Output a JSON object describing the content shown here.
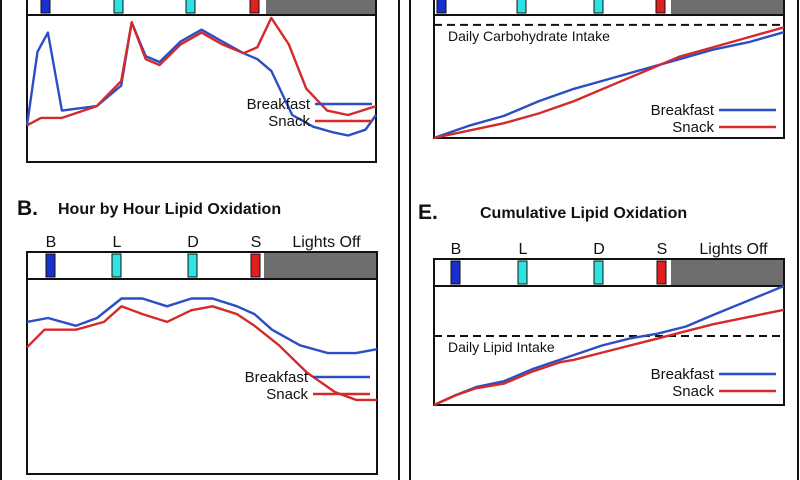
{
  "colors": {
    "breakfast": "#2b4ec4",
    "snack": "#d42a2a",
    "breakfast_light": "#a9b8e6",
    "snack_light": "#f0a8a8",
    "marker_b": "#1a2fd0",
    "marker_cyan": "#2fe3e3",
    "marker_s": "#e02020",
    "lights_off": "#6e6e6e"
  },
  "chart_data": [
    {
      "panel": "top-left",
      "type": "line",
      "title": "",
      "meal_markers": [],
      "lights_off_label": "",
      "series": [
        {
          "name": "Breakfast",
          "color": "breakfast",
          "points": [
            [
              0,
              0.25
            ],
            [
              0.03,
              0.75
            ],
            [
              0.06,
              0.88
            ],
            [
              0.1,
              0.35
            ],
            [
              0.2,
              0.38
            ],
            [
              0.27,
              0.52
            ],
            [
              0.3,
              0.95
            ],
            [
              0.34,
              0.72
            ],
            [
              0.38,
              0.68
            ],
            [
              0.44,
              0.82
            ],
            [
              0.5,
              0.9
            ],
            [
              0.56,
              0.82
            ],
            [
              0.62,
              0.74
            ],
            [
              0.66,
              0.7
            ],
            [
              0.7,
              0.62
            ],
            [
              0.76,
              0.32
            ],
            [
              0.82,
              0.24
            ],
            [
              0.88,
              0.2
            ],
            [
              0.92,
              0.18
            ],
            [
              0.97,
              0.22
            ],
            [
              1,
              0.32
            ]
          ]
        },
        {
          "name": "Snack",
          "color": "snack",
          "points": [
            [
              0,
              0.25
            ],
            [
              0.04,
              0.3
            ],
            [
              0.1,
              0.3
            ],
            [
              0.2,
              0.38
            ],
            [
              0.27,
              0.55
            ],
            [
              0.3,
              0.95
            ],
            [
              0.34,
              0.7
            ],
            [
              0.38,
              0.66
            ],
            [
              0.44,
              0.8
            ],
            [
              0.5,
              0.88
            ],
            [
              0.56,
              0.8
            ],
            [
              0.62,
              0.74
            ],
            [
              0.66,
              0.78
            ],
            [
              0.7,
              0.98
            ],
            [
              0.75,
              0.8
            ],
            [
              0.8,
              0.5
            ],
            [
              0.86,
              0.35
            ],
            [
              0.92,
              0.32
            ],
            [
              1,
              0.38
            ]
          ]
        }
      ],
      "legend": [
        "Breakfast",
        "Snack"
      ]
    },
    {
      "panel": "top-right",
      "type": "line",
      "title": "",
      "meal_markers": [],
      "lights_off_label": "",
      "reference_line_label": "Daily Carbohydrate Intake",
      "reference_value": 0.92,
      "series": [
        {
          "name": "Breakfast",
          "color": "breakfast",
          "points": [
            [
              0,
              0
            ],
            [
              0.1,
              0.1
            ],
            [
              0.2,
              0.18
            ],
            [
              0.3,
              0.3
            ],
            [
              0.4,
              0.4
            ],
            [
              0.5,
              0.48
            ],
            [
              0.6,
              0.56
            ],
            [
              0.7,
              0.64
            ],
            [
              0.8,
              0.72
            ],
            [
              0.9,
              0.78
            ],
            [
              1,
              0.86
            ]
          ]
        },
        {
          "name": "Snack",
          "color": "snack",
          "points": [
            [
              0,
              0
            ],
            [
              0.1,
              0.06
            ],
            [
              0.2,
              0.12
            ],
            [
              0.3,
              0.2
            ],
            [
              0.4,
              0.3
            ],
            [
              0.5,
              0.42
            ],
            [
              0.6,
              0.54
            ],
            [
              0.7,
              0.66
            ],
            [
              0.8,
              0.74
            ],
            [
              0.9,
              0.82
            ],
            [
              1,
              0.9
            ]
          ]
        }
      ],
      "legend": [
        "Breakfast",
        "Snack"
      ]
    },
    {
      "panel": "B",
      "type": "line",
      "title": "Hour by Hour Lipid Oxidation",
      "meal_markers": [
        "B",
        "L",
        "D",
        "S"
      ],
      "lights_off_label": "Lights Off",
      "series": [
        {
          "name": "Breakfast",
          "color": "breakfast",
          "points": [
            [
              0,
              0.78
            ],
            [
              0.06,
              0.8
            ],
            [
              0.14,
              0.76
            ],
            [
              0.2,
              0.8
            ],
            [
              0.27,
              0.9
            ],
            [
              0.33,
              0.9
            ],
            [
              0.4,
              0.86
            ],
            [
              0.47,
              0.9
            ],
            [
              0.53,
              0.9
            ],
            [
              0.6,
              0.86
            ],
            [
              0.65,
              0.82
            ],
            [
              0.7,
              0.74
            ],
            [
              0.78,
              0.66
            ],
            [
              0.86,
              0.62
            ],
            [
              0.94,
              0.62
            ],
            [
              1,
              0.64
            ]
          ]
        },
        {
          "name": "Snack",
          "color": "snack",
          "points": [
            [
              0,
              0.65
            ],
            [
              0.05,
              0.74
            ],
            [
              0.14,
              0.74
            ],
            [
              0.22,
              0.78
            ],
            [
              0.27,
              0.86
            ],
            [
              0.33,
              0.82
            ],
            [
              0.4,
              0.78
            ],
            [
              0.47,
              0.84
            ],
            [
              0.53,
              0.86
            ],
            [
              0.6,
              0.82
            ],
            [
              0.65,
              0.76
            ],
            [
              0.72,
              0.66
            ],
            [
              0.8,
              0.52
            ],
            [
              0.88,
              0.42
            ],
            [
              0.94,
              0.38
            ],
            [
              1,
              0.38
            ]
          ]
        }
      ],
      "legend": [
        "Breakfast",
        "Snack"
      ]
    },
    {
      "panel": "E",
      "type": "line",
      "title": "Cumulative Lipid Oxidation",
      "meal_markers": [
        "B",
        "L",
        "D",
        "S"
      ],
      "lights_off_label": "Lights Off",
      "reference_line_label": "Daily Lipid Intake",
      "reference_value": 0.58,
      "series": [
        {
          "name": "Breakfast",
          "color": "breakfast",
          "points": [
            [
              0,
              0
            ],
            [
              0.06,
              0.08
            ],
            [
              0.12,
              0.15
            ],
            [
              0.2,
              0.2
            ],
            [
              0.28,
              0.3
            ],
            [
              0.36,
              0.38
            ],
            [
              0.4,
              0.42
            ],
            [
              0.48,
              0.5
            ],
            [
              0.56,
              0.56
            ],
            [
              0.64,
              0.6
            ],
            [
              0.72,
              0.66
            ],
            [
              0.8,
              0.76
            ],
            [
              0.9,
              0.88
            ],
            [
              1,
              1
            ]
          ]
        },
        {
          "name": "Snack",
          "color": "snack",
          "points": [
            [
              0,
              0
            ],
            [
              0.06,
              0.08
            ],
            [
              0.12,
              0.14
            ],
            [
              0.2,
              0.18
            ],
            [
              0.28,
              0.28
            ],
            [
              0.36,
              0.36
            ],
            [
              0.4,
              0.38
            ],
            [
              0.48,
              0.44
            ],
            [
              0.56,
              0.5
            ],
            [
              0.64,
              0.56
            ],
            [
              0.72,
              0.62
            ],
            [
              0.8,
              0.68
            ],
            [
              0.9,
              0.74
            ],
            [
              1,
              0.8
            ]
          ]
        }
      ],
      "legend": [
        "Breakfast",
        "Snack"
      ]
    }
  ],
  "labels": {
    "panel_b_letter": "B.",
    "panel_e_letter": "E."
  }
}
